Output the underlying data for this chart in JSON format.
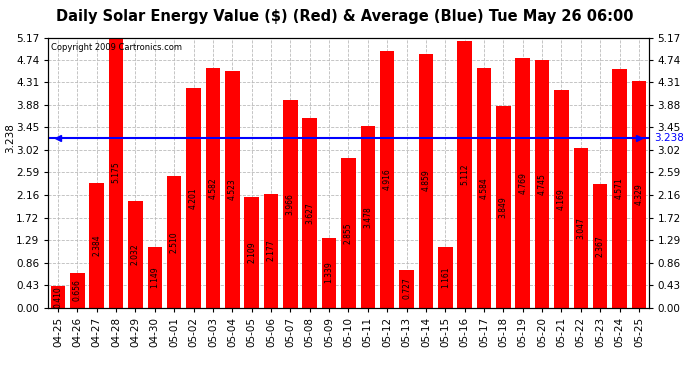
{
  "title": "Daily Solar Energy Value ($) (Red) & Average (Blue) Tue May 26 06:00",
  "copyright": "Copyright 2009 Cartronics.com",
  "average": 3.238,
  "bar_color": "#ff0000",
  "avg_line_color": "#0000ff",
  "background_color": "#ffffff",
  "plot_bg_color": "#ffffff",
  "categories": [
    "04-25",
    "04-26",
    "04-27",
    "04-28",
    "04-29",
    "04-30",
    "05-01",
    "05-02",
    "05-03",
    "05-04",
    "05-05",
    "05-06",
    "05-07",
    "05-08",
    "05-09",
    "05-10",
    "05-11",
    "05-12",
    "05-13",
    "05-14",
    "05-15",
    "05-16",
    "05-17",
    "05-18",
    "05-19",
    "05-20",
    "05-21",
    "05-22",
    "05-23",
    "05-24",
    "05-25"
  ],
  "values": [
    0.41,
    0.656,
    2.384,
    5.175,
    2.032,
    1.149,
    2.51,
    4.201,
    4.582,
    4.523,
    2.109,
    2.177,
    3.966,
    3.627,
    1.339,
    2.855,
    3.478,
    4.916,
    0.727,
    4.859,
    1.161,
    5.112,
    4.584,
    3.849,
    4.769,
    4.745,
    4.169,
    3.047,
    2.367,
    4.571,
    4.329
  ],
  "yticks": [
    0.0,
    0.43,
    0.86,
    1.29,
    1.72,
    2.16,
    2.59,
    3.02,
    3.45,
    3.88,
    4.31,
    4.74,
    5.17
  ],
  "ymax": 5.17,
  "ymin": 0.0,
  "grid_color": "#bbbbbb",
  "title_fontsize": 10.5,
  "tick_fontsize": 7.5,
  "bar_label_fontsize": 5.5,
  "label_color": "#000000"
}
